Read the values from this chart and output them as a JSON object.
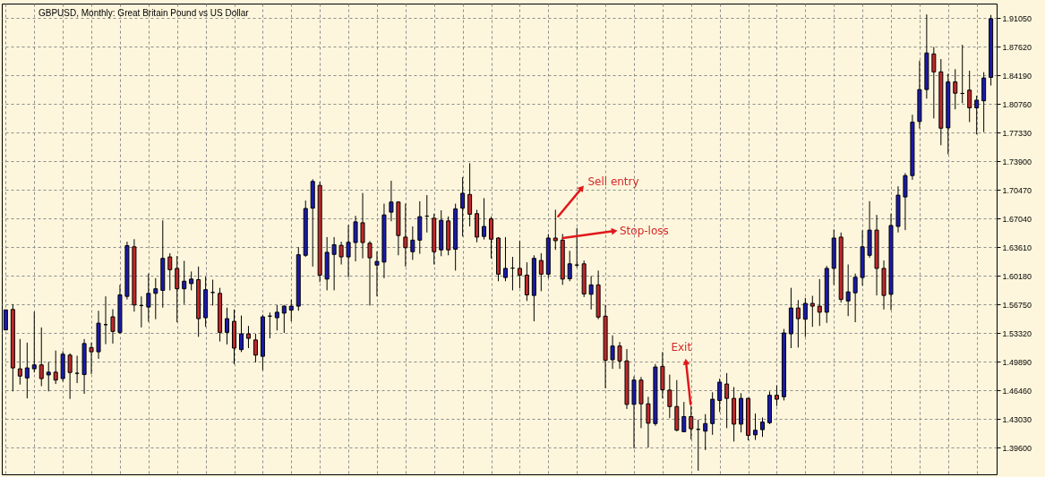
{
  "chart_data": {
    "type": "candlestick",
    "title": "GBPUSD, Monthly: Great Britain Pound vs US Dollar",
    "categories": [
      null,
      null,
      null,
      null,
      null,
      null,
      null,
      null,
      null,
      null,
      null,
      null,
      null,
      null,
      null,
      null,
      null,
      null,
      null,
      null,
      null,
      null,
      null,
      null,
      null,
      null,
      null,
      null,
      null,
      null,
      null,
      null,
      null,
      null,
      null,
      null,
      null,
      null,
      null,
      null,
      null,
      null,
      null,
      null,
      null,
      null,
      null,
      null,
      null,
      null,
      null,
      null,
      null,
      null,
      null,
      null,
      null,
      null,
      null,
      null,
      null,
      null,
      null,
      null,
      null,
      null,
      null,
      null,
      null,
      null,
      null,
      null,
      null,
      null,
      null,
      null,
      null,
      null,
      null,
      null,
      null,
      null,
      null,
      null,
      null,
      null,
      null,
      null,
      null,
      null,
      null,
      null,
      null,
      null,
      null,
      null,
      null,
      null,
      null,
      null,
      null,
      null,
      null,
      null,
      null,
      null,
      null,
      null,
      null,
      null,
      null,
      null,
      null,
      null,
      null,
      null,
      null,
      null,
      null,
      null,
      null,
      null,
      null,
      null,
      null,
      null,
      null,
      null,
      null,
      null,
      null,
      null,
      null,
      null,
      null,
      null,
      null,
      null,
      null
    ],
    "ohlc": [
      [
        1.537,
        1.561,
        1.537,
        1.561
      ],
      [
        1.5615,
        1.568,
        1.4634,
        1.4915
      ],
      [
        1.4904,
        1.5261,
        1.4715,
        1.4817
      ],
      [
        1.4795,
        1.5218,
        1.455,
        1.4915
      ],
      [
        1.4904,
        1.5589,
        1.486,
        1.4951
      ],
      [
        1.4951,
        1.54,
        1.4696,
        1.4787
      ],
      [
        1.4831,
        1.4988,
        1.4634,
        1.4864
      ],
      [
        1.4864,
        1.5123,
        1.4722,
        1.4769
      ],
      [
        1.4787,
        1.5115,
        1.4751,
        1.5079
      ],
      [
        1.5068,
        1.509,
        1.4543,
        1.486
      ],
      [
        1.485,
        1.5061,
        1.4733,
        1.485
      ],
      [
        1.4835,
        1.5261,
        1.4605,
        1.5207
      ],
      [
        1.5159,
        1.5218,
        1.4842,
        1.5108
      ],
      [
        1.5108,
        1.56,
        1.5024,
        1.5451
      ],
      [
        1.5433,
        1.5772,
        1.5199,
        1.5433
      ],
      [
        1.5527,
        1.5618,
        1.5207,
        1.5352
      ],
      [
        1.5341,
        1.591,
        1.5323,
        1.579
      ],
      [
        1.5772,
        1.6428,
        1.5735,
        1.638
      ],
      [
        1.6366,
        1.6457,
        1.5589,
        1.5669
      ],
      [
        1.5662,
        1.5772,
        1.54,
        1.5662
      ],
      [
        1.5644,
        1.6045,
        1.5469,
        1.5808
      ],
      [
        1.5808,
        1.599,
        1.5498,
        1.5863
      ],
      [
        1.5844,
        1.6683,
        1.5637,
        1.6227
      ],
      [
        1.6245,
        1.6289,
        1.5844,
        1.6092
      ],
      [
        1.6107,
        1.6256,
        1.5462,
        1.5863
      ],
      [
        1.5863,
        1.6198,
        1.568,
        1.5954
      ],
      [
        1.5925,
        1.607,
        1.5844,
        1.5979
      ],
      [
        1.5972,
        1.6129,
        1.5287,
        1.5505
      ],
      [
        1.5516,
        1.6008,
        1.5407,
        1.5852
      ],
      [
        1.5819,
        1.5972,
        1.5662,
        1.5819
      ],
      [
        1.5808,
        1.5874,
        1.5232,
        1.5341
      ],
      [
        1.5341,
        1.5637,
        1.5196,
        1.5505
      ],
      [
        1.5473,
        1.5615,
        1.4959,
        1.5152
      ],
      [
        1.5134,
        1.5542,
        1.5105,
        1.5323
      ],
      [
        1.5323,
        1.5418,
        1.5152,
        1.5269
      ],
      [
        1.525,
        1.5323,
        1.4981,
        1.5068
      ],
      [
        1.5054,
        1.5553,
        1.4886,
        1.5527
      ],
      [
        1.5535,
        1.5578,
        1.5269,
        1.5535
      ],
      [
        1.5516,
        1.5669,
        1.5363,
        1.5582
      ],
      [
        1.5571,
        1.5669,
        1.5334,
        1.5655
      ],
      [
        1.5608,
        1.5735,
        1.5473,
        1.5655
      ],
      [
        1.5655,
        1.6362,
        1.56,
        1.6271
      ],
      [
        1.6264,
        1.692,
        1.6245,
        1.6825
      ],
      [
        1.6829,
        1.7175,
        1.6129,
        1.7149
      ],
      [
        1.7102,
        1.7146,
        1.5943,
        1.6027
      ],
      [
        1.5979,
        1.6482,
        1.5844,
        1.63
      ],
      [
        1.6275,
        1.6482,
        1.5844,
        1.6391
      ],
      [
        1.6384,
        1.6428,
        1.6154,
        1.6245
      ],
      [
        1.6245,
        1.6628,
        1.6001,
        1.642
      ],
      [
        1.6417,
        1.6737,
        1.6191,
        1.6665
      ],
      [
        1.6654,
        1.7011,
        1.6227,
        1.6417
      ],
      [
        1.6409,
        1.6435,
        1.5662,
        1.6234
      ],
      [
        1.6147,
        1.6311,
        1.5772,
        1.6191
      ],
      [
        1.6183,
        1.6883,
        1.599,
        1.6748
      ],
      [
        1.6781,
        1.7157,
        1.6672,
        1.6902
      ],
      [
        1.6902,
        1.6912,
        1.6264,
        1.6501
      ],
      [
        1.6482,
        1.6883,
        1.6129,
        1.6355
      ],
      [
        1.6307,
        1.661,
        1.6209,
        1.6446
      ],
      [
        1.6446,
        1.6912,
        1.6282,
        1.6727
      ],
      [
        1.6734,
        1.6985,
        1.6537,
        1.6734
      ],
      [
        1.6708,
        1.6763,
        1.6154,
        1.6307
      ],
      [
        1.6329,
        1.6803,
        1.6253,
        1.6683
      ],
      [
        1.6676,
        1.673,
        1.6264,
        1.6329
      ],
      [
        1.6337,
        1.6883,
        1.6081,
        1.6821
      ],
      [
        1.6829,
        1.72,
        1.649,
        1.7007
      ],
      [
        1.6993,
        1.7368,
        1.661,
        1.6756
      ],
      [
        1.6763,
        1.681,
        1.642,
        1.6482
      ],
      [
        1.649,
        1.6949,
        1.6453,
        1.661
      ],
      [
        1.6701,
        1.6727,
        1.6227,
        1.6457
      ],
      [
        1.6471,
        1.6482,
        1.5954,
        1.6038
      ],
      [
        1.5998,
        1.6482,
        1.5954,
        1.6107
      ],
      [
        1.6111,
        1.6245,
        1.5844,
        1.6111
      ],
      [
        1.6107,
        1.6435,
        1.587,
        1.6027
      ],
      [
        1.6027,
        1.618,
        1.5717,
        1.579
      ],
      [
        1.5783,
        1.6264,
        1.5473,
        1.6227
      ],
      [
        1.6202,
        1.6289,
        1.5834,
        1.6038
      ],
      [
        1.6038,
        1.6519,
        1.599,
        1.6471
      ],
      [
        1.6471,
        1.681,
        1.6329,
        1.6439
      ],
      [
        1.6446,
        1.6519,
        1.591,
        1.5979
      ],
      [
        1.5983,
        1.6318,
        1.5954,
        1.6162
      ],
      [
        1.6147,
        1.6592,
        1.6118,
        1.6147
      ],
      [
        1.6162,
        1.6202,
        1.5764,
        1.5801
      ],
      [
        1.5797,
        1.6016,
        1.5615,
        1.591
      ],
      [
        1.591,
        1.6081,
        1.5498,
        1.5524
      ],
      [
        1.5535,
        1.5669,
        1.4671,
        1.5006
      ],
      [
        1.5013,
        1.5305,
        1.4904,
        1.5177
      ],
      [
        1.5177,
        1.5225,
        1.4904,
        1.4999
      ],
      [
        1.4999,
        1.5141,
        1.4423,
        1.4478
      ],
      [
        1.4478,
        1.4813,
        1.3949,
        1.4769
      ],
      [
        1.4769,
        1.4806,
        1.4193,
        1.4485
      ],
      [
        1.4485,
        1.4569,
        1.396,
        1.4252
      ],
      [
        1.4248,
        1.4962,
        1.4222,
        1.4926
      ],
      [
        1.4933,
        1.5105,
        1.455,
        1.4653
      ],
      [
        1.4649,
        1.4835,
        1.4314,
        1.4452
      ],
      [
        1.4452,
        1.4769,
        1.4157,
        1.4168
      ],
      [
        1.415,
        1.4507,
        1.4146,
        1.4332
      ],
      [
        1.4332,
        1.4459,
        1.4058,
        1.4186
      ],
      [
        1.4179,
        1.4295,
        1.3683,
        1.4179
      ],
      [
        1.4157,
        1.4361,
        1.3931,
        1.4248
      ],
      [
        1.4248,
        1.4623,
        1.4113,
        1.454
      ],
      [
        1.4525,
        1.4787,
        1.4386,
        1.4744
      ],
      [
        1.4722,
        1.4853,
        1.4193,
        1.455
      ],
      [
        1.455,
        1.4685,
        1.4033,
        1.4241
      ],
      [
        1.4241,
        1.4612,
        1.4142,
        1.455
      ],
      [
        1.455,
        1.4558,
        1.4047,
        1.4106
      ],
      [
        1.4113,
        1.4368,
        1.4051,
        1.4168
      ],
      [
        1.4175,
        1.4321,
        1.4088,
        1.4266
      ],
      [
        1.4259,
        1.4634,
        1.4241,
        1.4587
      ],
      [
        1.4587,
        1.4707,
        1.4459,
        1.454
      ],
      [
        1.4569,
        1.5382,
        1.4525,
        1.5334
      ],
      [
        1.5323,
        1.5874,
        1.5152,
        1.5633
      ],
      [
        1.5633,
        1.5728,
        1.5159,
        1.5505
      ],
      [
        1.5498,
        1.5753,
        1.5287,
        1.5688
      ],
      [
        1.5688,
        1.5779,
        1.5407,
        1.5655
      ],
      [
        1.5655,
        1.5979,
        1.5418,
        1.5582
      ],
      [
        1.5582,
        1.6136,
        1.5454,
        1.6107
      ],
      [
        1.6107,
        1.6573,
        1.591,
        1.6471
      ],
      [
        1.6482,
        1.6537,
        1.5699,
        1.5735
      ],
      [
        1.5717,
        1.6154,
        1.5535,
        1.5826
      ],
      [
        1.5815,
        1.6045,
        1.5462,
        1.6001
      ],
      [
        1.5998,
        1.6563,
        1.5899,
        1.6366
      ],
      [
        1.6264,
        1.6912,
        1.6234,
        1.6566
      ],
      [
        1.6566,
        1.6748,
        1.5783,
        1.6107
      ],
      [
        1.6107,
        1.6202,
        1.5615,
        1.5783
      ],
      [
        1.5797,
        1.6763,
        1.5608,
        1.6621
      ],
      [
        1.661,
        1.7091,
        1.6537,
        1.6985
      ],
      [
        1.6963,
        1.7248,
        1.6566,
        1.7219
      ],
      [
        1.7219,
        1.7948,
        1.7168,
        1.786
      ],
      [
        1.7867,
        1.8596,
        1.7784,
        1.825
      ],
      [
        1.825,
        1.915,
        1.8141,
        1.8688
      ],
      [
        1.8677,
        1.876,
        1.7904,
        1.8462
      ],
      [
        1.8462,
        1.8615,
        1.7583,
        1.7787
      ],
      [
        1.7791,
        1.844,
        1.7474,
        1.8341
      ],
      [
        1.8341,
        1.8494,
        1.8013,
        1.8206
      ],
      [
        1.8203,
        1.8786,
        1.8086,
        1.8203
      ],
      [
        1.8243,
        1.8476,
        1.786,
        1.8031
      ],
      [
        1.8031,
        1.8177,
        1.7714,
        1.8123
      ],
      [
        1.8115,
        1.8458,
        1.774,
        1.8389
      ],
      [
        1.8396,
        1.9143,
        1.8298,
        1.9099
      ]
    ],
    "colors": [
      "#1a1aaa",
      "#c0282a",
      "#c0282a",
      "#1a1aaa",
      "#1a1aaa",
      "#c0282a",
      "#1a1aaa",
      "#c0282a",
      "#1a1aaa",
      "#c0282a",
      "#000000",
      "#1a1aaa",
      "#c0282a",
      "#1a1aaa",
      "#000000",
      "#c0282a",
      "#1a1aaa",
      "#1a1aaa",
      "#c0282a",
      "#000000",
      "#1a1aaa",
      "#1a1aaa",
      "#1a1aaa",
      "#c0282a",
      "#c0282a",
      "#1a1aaa",
      "#1a1aaa",
      "#c0282a",
      "#1a1aaa",
      "#000000",
      "#c0282a",
      "#1a1aaa",
      "#c0282a",
      "#1a1aaa",
      "#c0282a",
      "#c0282a",
      "#1a1aaa",
      "#000000",
      "#1a1aaa",
      "#1a1aaa",
      "#1a1aaa",
      "#1a1aaa",
      "#1a1aaa",
      "#1a1aaa",
      "#c0282a",
      "#1a1aaa",
      "#1a1aaa",
      "#c0282a",
      "#1a1aaa",
      "#1a1aaa",
      "#c0282a",
      "#c0282a",
      "#1a1aaa",
      "#1a1aaa",
      "#1a1aaa",
      "#c0282a",
      "#c0282a",
      "#1a1aaa",
      "#1a1aaa",
      "#000000",
      "#c0282a",
      "#1a1aaa",
      "#c0282a",
      "#1a1aaa",
      "#1a1aaa",
      "#c0282a",
      "#c0282a",
      "#1a1aaa",
      "#c0282a",
      "#c0282a",
      "#1a1aaa",
      "#000000",
      "#c0282a",
      "#c0282a",
      "#1a1aaa",
      "#c0282a",
      "#1a1aaa",
      "#c0282a",
      "#c0282a",
      "#1a1aaa",
      "#000000",
      "#c0282a",
      "#1a1aaa",
      "#c0282a",
      "#c0282a",
      "#1a1aaa",
      "#c0282a",
      "#c0282a",
      "#1a1aaa",
      "#c0282a",
      "#c0282a",
      "#1a1aaa",
      "#c0282a",
      "#c0282a",
      "#c0282a",
      "#1a1aaa",
      "#c0282a",
      "#000000",
      "#1a1aaa",
      "#1a1aaa",
      "#1a1aaa",
      "#c0282a",
      "#c0282a",
      "#1a1aaa",
      "#c0282a",
      "#1a1aaa",
      "#1a1aaa",
      "#1a1aaa",
      "#c0282a",
      "#1a1aaa",
      "#1a1aaa",
      "#c0282a",
      "#1a1aaa",
      "#c0282a",
      "#c0282a",
      "#1a1aaa",
      "#1a1aaa",
      "#c0282a",
      "#1a1aaa",
      "#1a1aaa",
      "#1a1aaa",
      "#1a1aaa",
      "#c0282a",
      "#c0282a",
      "#1a1aaa",
      "#1a1aaa",
      "#1a1aaa",
      "#1a1aaa",
      "#1a1aaa",
      "#1a1aaa",
      "#c0282a",
      "#c0282a",
      "#1a1aaa",
      "#c0282a",
      "#000000",
      "#c0282a",
      "#1a1aaa",
      "#1a1aaa",
      "#1a1aaa"
    ],
    "ylim": [
      1.364,
      1.928
    ],
    "yticks": [
      {
        "value": 1.396,
        "label": "1.39600"
      },
      {
        "value": 1.4303,
        "label": "1.43030"
      },
      {
        "value": 1.4646,
        "label": "1.46460"
      },
      {
        "value": 1.4989,
        "label": "1.49890"
      },
      {
        "value": 1.5332,
        "label": "1.53320"
      },
      {
        "value": 1.5675,
        "label": "1.56750"
      },
      {
        "value": 1.6018,
        "label": "1.60180"
      },
      {
        "value": 1.6361,
        "label": "1.63610"
      },
      {
        "value": 1.6704,
        "label": "1.67040"
      },
      {
        "value": 1.7047,
        "label": "1.70470"
      },
      {
        "value": 1.739,
        "label": "1.73900"
      },
      {
        "value": 1.7733,
        "label": "1.77330"
      },
      {
        "value": 1.8076,
        "label": "1.80760"
      },
      {
        "value": 1.8419,
        "label": "1.84190"
      },
      {
        "value": 1.8762,
        "label": "1.87620"
      },
      {
        "value": 1.9105,
        "label": "1.91050"
      }
    ],
    "annotations": [
      "Sell entry",
      "Stop-loss",
      "Exit"
    ],
    "grid": true,
    "tick_labels": "y"
  }
}
